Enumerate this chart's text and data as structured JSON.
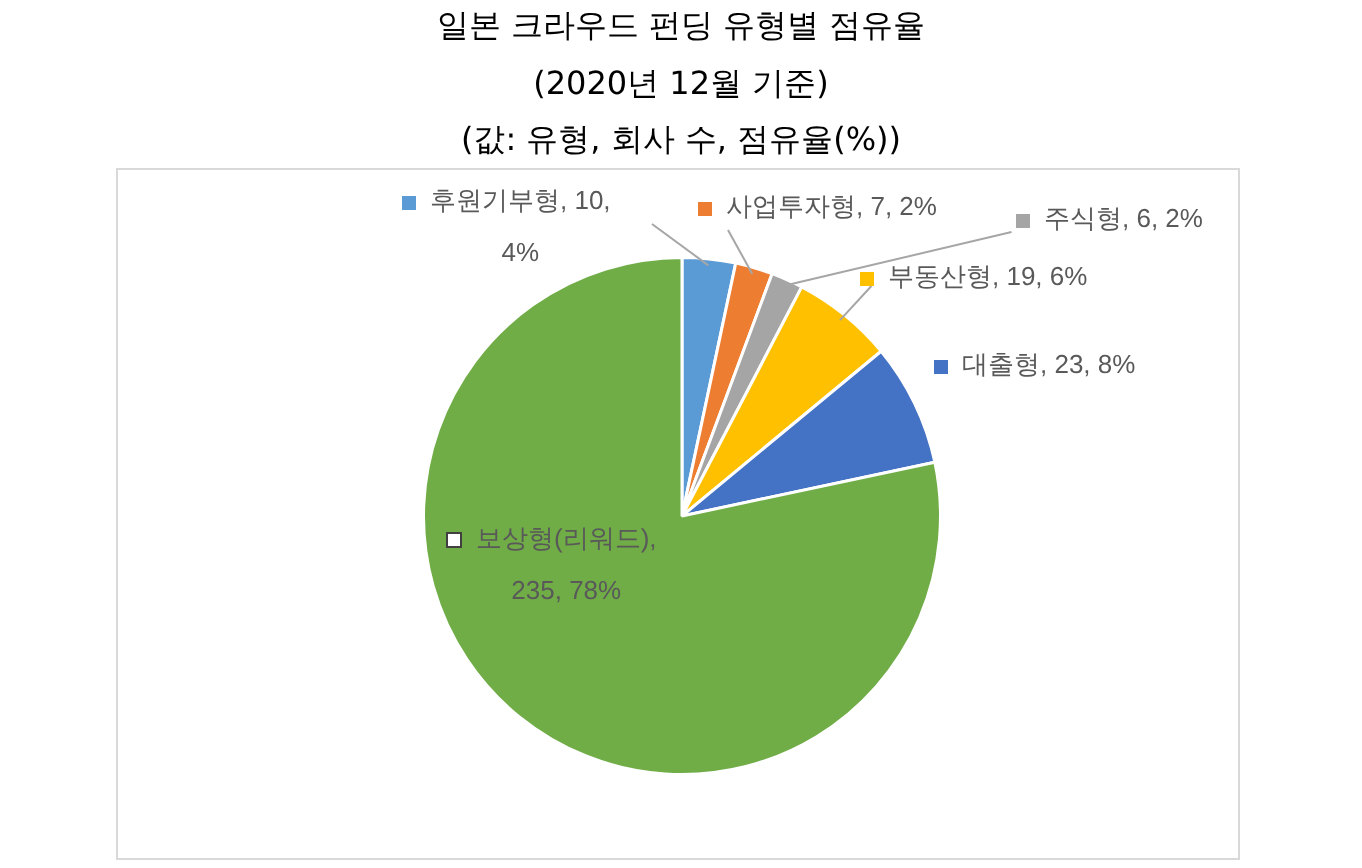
{
  "chart_data": {
    "type": "pie",
    "title": "일본 크라우드 펀딩 유형별 점유율",
    "subtitle": "(2020년 12월 기준)",
    "annotations": [
      "(값: 유형, 회사 수, 점유율(%))"
    ],
    "categories": [
      "후원기부형",
      "사업투자형",
      "주식형",
      "부동산형",
      "대출형",
      "보상형(리워드)"
    ],
    "values": [
      10,
      7,
      6,
      19,
      23,
      235
    ],
    "colors": [
      "#5b9bd5",
      "#ed7d31",
      "#a5a5a5",
      "#ffc000",
      "#4472c4",
      "#70ad47"
    ],
    "value_labels": [
      ", 10, 4%",
      ", 7, 2%",
      ", 6, 2%",
      ", 19, 6%",
      ", 23, 8%",
      ", 235, 78%"
    ],
    "legend": "top"
  }
}
